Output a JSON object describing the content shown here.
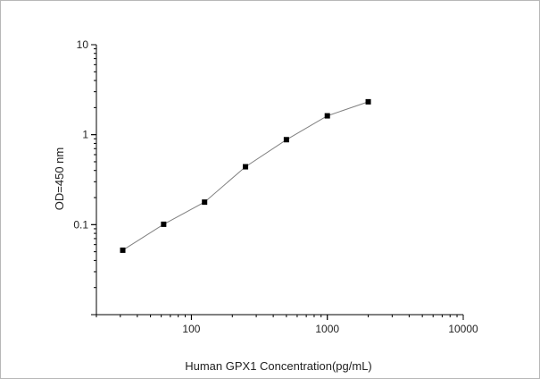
{
  "chart_data": {
    "type": "scatter",
    "title": "",
    "xlabel": "Human GPX1 Concentration(pg/mL)",
    "ylabel": "OD=450 nm",
    "x_scale": "log",
    "y_scale": "log",
    "xlim": [
      20,
      10000
    ],
    "ylim": [
      0.01,
      10
    ],
    "x_ticks": [
      {
        "value": 100,
        "label": "100"
      },
      {
        "value": 1000,
        "label": "1000"
      },
      {
        "value": 10000,
        "label": "10000"
      }
    ],
    "y_ticks": [
      {
        "value": 0.1,
        "label": "0.1"
      },
      {
        "value": 1,
        "label": "1"
      },
      {
        "value": 10,
        "label": "10"
      }
    ],
    "grid": false,
    "legend": "none",
    "connect_points": true,
    "marker": "square",
    "series": [
      {
        "x": [
          31.25,
          62.5,
          125,
          250,
          500,
          1000,
          2000
        ],
        "y": [
          0.052,
          0.101,
          0.178,
          0.44,
          0.88,
          1.62,
          2.32
        ]
      }
    ],
    "colors": {
      "marker": "#000000",
      "line": "#808080",
      "axis": "#000000"
    }
  }
}
